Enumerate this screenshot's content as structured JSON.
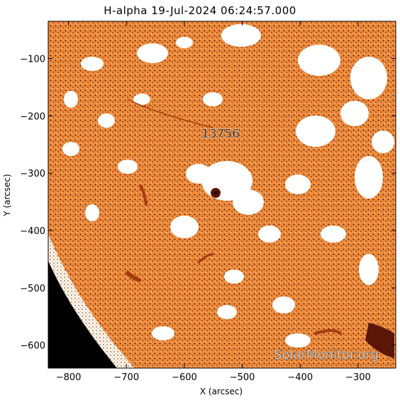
{
  "title": "H-alpha 19-Jul-2024 06:24:57.000",
  "xlabel": "X (arcsec)",
  "ylabel": "Y (arcsec)",
  "x_ticks": [
    "−800",
    "−700",
    "−600",
    "−500",
    "−400",
    "−300"
  ],
  "y_ticks": [
    "−100",
    "−200",
    "−300",
    "−400",
    "−500",
    "−600"
  ],
  "xlim": [
    -835,
    -235
  ],
  "ylim": [
    -640,
    -35
  ],
  "region_label": "13756",
  "watermark": "SolarMonitor.org",
  "colors": {
    "chromosphere": "#f08a3c",
    "plage": "#ffffff",
    "sunspot": "#5a1606",
    "filament": "#a83a10",
    "space": "#000000"
  }
}
